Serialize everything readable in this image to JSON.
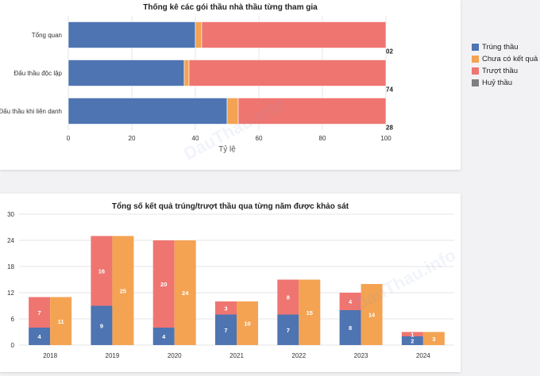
{
  "colors": {
    "trung": "#4e74b2",
    "chua": "#f4a352",
    "truot": "#ef7571",
    "huy": "#7f7f7f"
  },
  "watermark_text": "DauThau.info",
  "chart_data": [
    {
      "type": "bar",
      "orientation": "horizontal",
      "stacked": true,
      "title": "Thống kê các gói thầu nhà thầu từng tham gia",
      "xlabel": "Tỷ lệ",
      "ylabel": "",
      "xlim": [
        0,
        100
      ],
      "xticks": [
        0,
        20,
        40,
        60,
        80,
        100
      ],
      "grid": true,
      "legend": "right",
      "categories": [
        "Tổng quan",
        "Đấu thầu độc lập",
        "Đấu thầu khi liên danh"
      ],
      "series": [
        {
          "name": "Trúng thầu",
          "values": [
            40,
            36.5,
            50
          ]
        },
        {
          "name": "Chưa có kết quả",
          "values": [
            2,
            1.5,
            3.5
          ]
        },
        {
          "name": "Trượt thầu",
          "values": [
            58,
            62,
            46.5
          ]
        },
        {
          "name": "Huỷ thầu",
          "values": [
            0,
            0,
            0
          ]
        }
      ],
      "end_labels": [
        "02",
        "74",
        "28"
      ]
    },
    {
      "type": "bar",
      "stacked": true,
      "grouped": true,
      "title": "Tổng số kết quả trúng/trượt thầu qua từng năm được khảo sát",
      "xlabel": "",
      "ylabel": "",
      "ylim": [
        0,
        30
      ],
      "yticks": [
        0,
        6,
        12,
        18,
        24,
        30
      ],
      "grid": true,
      "categories": [
        "2018",
        "2019",
        "2020",
        "2021",
        "2022",
        "2023",
        "2024"
      ],
      "trung": [
        4,
        9,
        4,
        7,
        7,
        8,
        2
      ],
      "truot": [
        7,
        16,
        20,
        3,
        8,
        4,
        1
      ],
      "chua": [
        11,
        25,
        24,
        10,
        15,
        14,
        3
      ]
    }
  ]
}
